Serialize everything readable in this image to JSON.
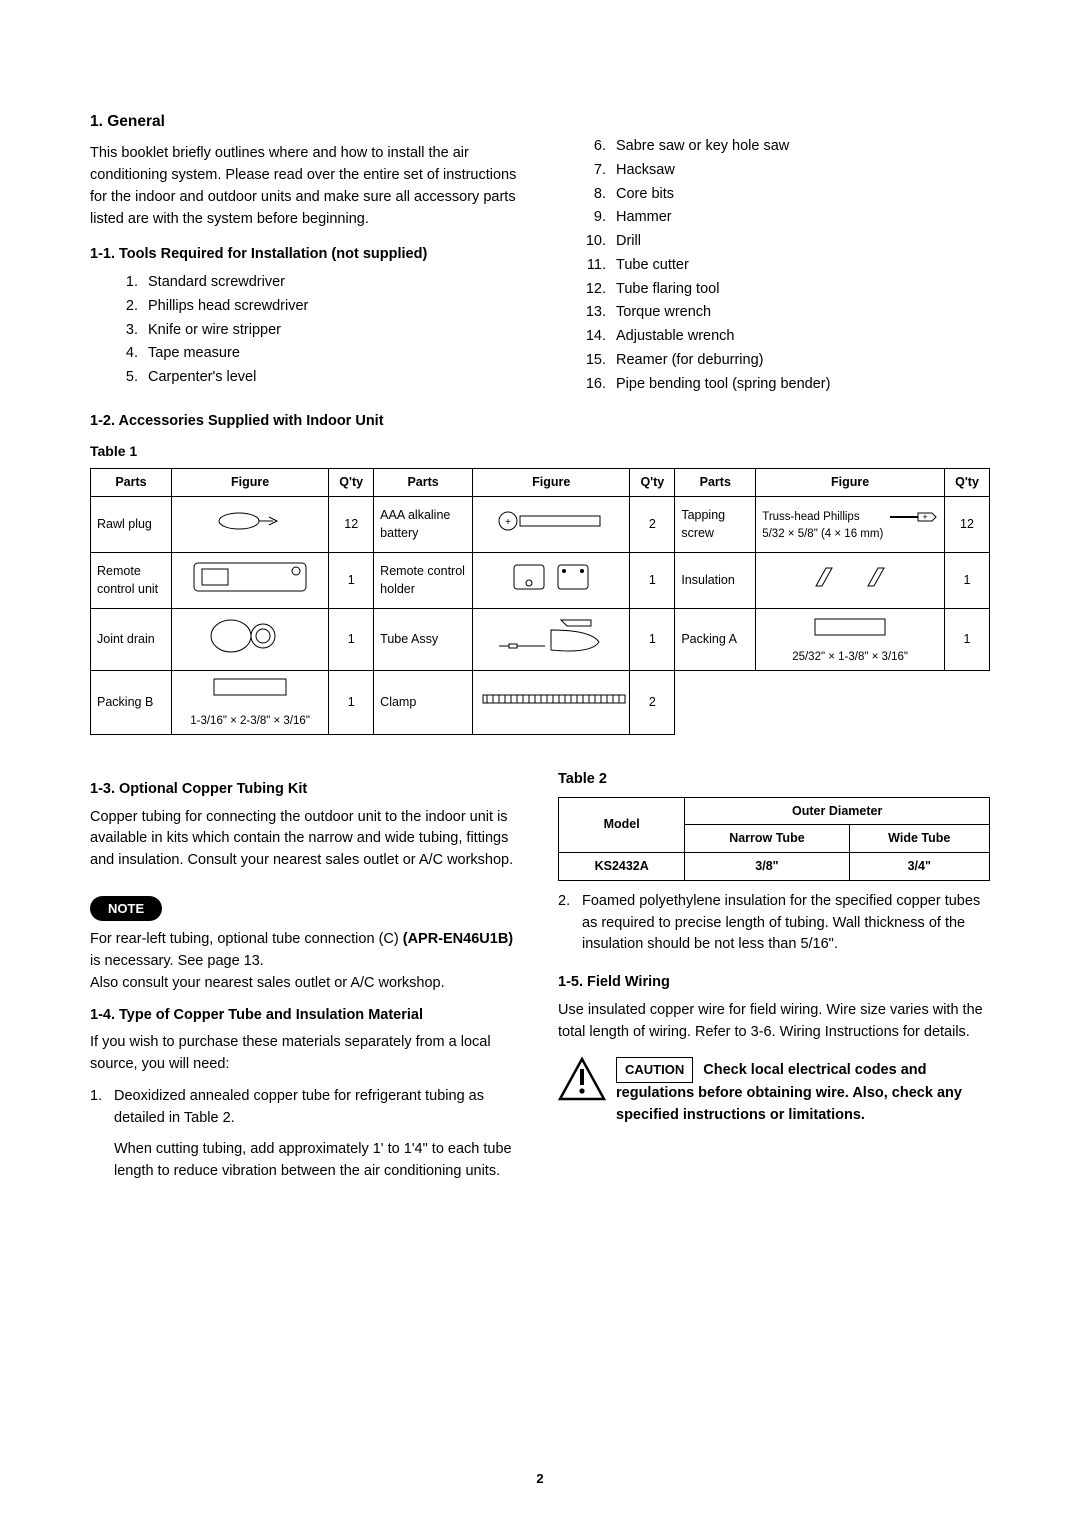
{
  "section": {
    "num": "1.",
    "title": "General"
  },
  "intro": "This booklet briefly outlines where and how to install the air conditioning system. Please read over the entire set of instructions for the indoor and outdoor units and make sure all accessory parts listed are with the system before beginning.",
  "sub1_1": "1-1.  Tools Required for Installation (not supplied)",
  "tools": [
    "Standard screwdriver",
    "Phillips head screwdriver",
    "Knife or wire stripper",
    "Tape measure",
    "Carpenter's level",
    "Sabre saw or key hole saw",
    "Hacksaw",
    "Core bits",
    "Hammer",
    "Drill",
    "Tube cutter",
    "Tube flaring tool",
    "Torque wrench",
    "Adjustable wrench",
    "Reamer (for deburring)",
    "Pipe bending tool (spring bender)"
  ],
  "sub1_2": "1-2.  Accessories Supplied with Indoor Unit",
  "table1_label": "Table 1",
  "table1": {
    "headers": [
      "Parts",
      "Figure",
      "Q'ty",
      "Parts",
      "Figure",
      "Q'ty",
      "Parts",
      "Figure",
      "Q'ty"
    ],
    "col_widths_pct": [
      9,
      17.5,
      5,
      11,
      17.5,
      5,
      9,
      21,
      5
    ],
    "rows": [
      [
        {
          "part": "Rawl plug",
          "qty": "12"
        },
        {
          "part": "AAA alkaline battery",
          "qty": "2"
        },
        {
          "part": "Tapping screw",
          "qty": "12",
          "fig_label": "Truss-head Phillips",
          "fig_sub": "5/32 × 5/8\" (4 × 16 mm)"
        }
      ],
      [
        {
          "part": "Remote control unit",
          "qty": "1"
        },
        {
          "part": "Remote control holder",
          "qty": "1"
        },
        {
          "part": "Insulation",
          "qty": "1"
        }
      ],
      [
        {
          "part": "Joint drain",
          "qty": "1"
        },
        {
          "part": "Tube Assy",
          "qty": "1"
        },
        {
          "part": "Packing A",
          "qty": "1",
          "fig_sub": "25/32\" × 1-3/8\" × 3/16\""
        }
      ],
      [
        {
          "part": "Packing B",
          "qty": "1",
          "fig_sub": "1-3/16\" × 2-3/8\" × 3/16\""
        },
        {
          "part": "Clamp",
          "qty": "2"
        },
        null
      ]
    ]
  },
  "sub1_3": "1-3.  Optional Copper Tubing Kit",
  "p1_3": "Copper tubing for connecting the outdoor unit to the indoor unit is available in kits which contain the narrow and wide tubing, fittings and insulation. Consult your nearest sales outlet or A/C workshop.",
  "note_label": "NOTE",
  "note_body_1": "For rear-left tubing, optional tube connection (C) ",
  "note_bold_1": "(APR-EN46U1B)",
  "note_body_2": " is necessary. See page 13.",
  "note_body_3": "Also consult your nearest sales outlet or A/C workshop.",
  "sub1_4": "1-4.  Type of Copper Tube and Insulation Material",
  "p1_4": "If you wish to purchase these materials separately from a local source, you will need:",
  "li1_4_1a": "Deoxidized annealed copper tube for refrigerant tubing as detailed in Table 2.",
  "li1_4_1b": "When cutting tubing, add approximately 1' to 1'4\" to each tube length to reduce vibration between the air conditioning units.",
  "table2_label": "Table 2",
  "table2": {
    "h_model": "Model",
    "h_outer": "Outer Diameter",
    "h_narrow": "Narrow Tube",
    "h_wide": "Wide Tube",
    "model": "KS2432A",
    "narrow": "3/8\"",
    "wide": "3/4\""
  },
  "li_right_2": "Foamed polyethylene insulation for the specified copper tubes as required to precise length of tubing. Wall thickness of the insulation should be not less than 5/16\".",
  "sub1_5": "1-5.  Field Wiring",
  "p1_5": "Use insulated copper wire for field wiring. Wire size varies with the total length of wiring. Refer to 3-6. Wiring Instructions for details.",
  "caution_label": "CAUTION",
  "caution_text": "Check local electrical codes and regulations before obtaining wire. Also, check any specified instructions or limitations.",
  "page_number": "2"
}
